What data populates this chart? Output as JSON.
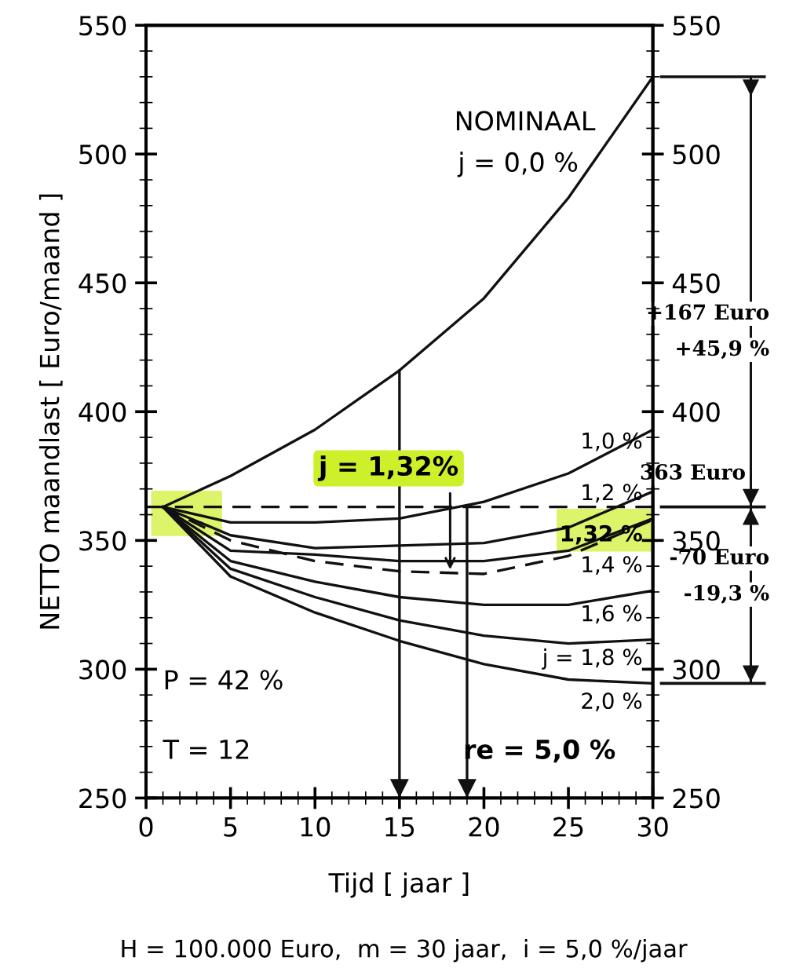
{
  "chart_data": {
    "type": "line",
    "xlabel": "Tijd [ jaar ]",
    "ylabel": "NETTO maandlast [ Euro/maand ]",
    "x": [
      1,
      5,
      10,
      15,
      20,
      25,
      30
    ],
    "series": [
      {
        "name": "NOMINAAL",
        "color": "#111111",
        "values": [
          363,
          375,
          393,
          416,
          444,
          483,
          530
        ]
      },
      {
        "name": "1,0 %",
        "color": "#111111",
        "values": [
          363,
          357,
          357,
          358.5,
          365,
          376,
          393
        ]
      },
      {
        "name": "1,2 %",
        "color": "#111111",
        "values": [
          363,
          352,
          347,
          348,
          349,
          355,
          369
        ]
      },
      {
        "name": "1,32 %",
        "color": "#111111",
        "line_style": "dashed",
        "values": [
          363,
          350,
          342,
          338,
          337,
          344,
          358
        ]
      },
      {
        "name": "1,4 %",
        "color": "#111111",
        "values": [
          363,
          346,
          344.5,
          342,
          342,
          346,
          358.5
        ]
      },
      {
        "name": "1,6 %",
        "color": "#111111",
        "values": [
          363,
          342,
          334,
          328,
          325,
          325,
          330.5
        ]
      },
      {
        "name": "j = 1,8 %",
        "color": "#111111",
        "values": [
          363,
          339,
          328,
          319,
          313,
          310,
          311.5
        ]
      },
      {
        "name": "2,0 %",
        "color": "#111111",
        "values": [
          363,
          336,
          322,
          311,
          302,
          296,
          294.5
        ]
      }
    ],
    "xlim": [
      0,
      30
    ],
    "xticks": [
      0,
      5,
      10,
      15,
      20,
      25,
      30
    ],
    "ylim": [
      250,
      550
    ],
    "yticks": [
      250,
      300,
      350,
      400,
      450,
      500,
      550
    ],
    "y2lim": [
      250,
      550
    ],
    "y2ticks": [
      250,
      300,
      350,
      400,
      450,
      500,
      550
    ],
    "marker": "none",
    "line_style": "solid",
    "grid": false,
    "ref_lines": [
      {
        "axis": "y",
        "value": 363,
        "label": "363 Euro",
        "line_style": "dashed"
      },
      {
        "axis": "x",
        "value": 15
      },
      {
        "axis": "x",
        "value": 19
      }
    ],
    "annotations": [
      "j = 0,0 %",
      {
        "text": "j = 1,32%",
        "x": 18,
        "y": 337
      },
      "P = 42 %",
      "T = 12",
      "re = 5,0 %",
      "+167 Euro",
      "+45,9 %",
      "-70 Euro",
      "-19,3 %",
      "H = 100.000 Euro,  m = 30 jaar,  i = 5,0 %/jaar"
    ]
  }
}
